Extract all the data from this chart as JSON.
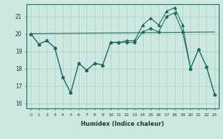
{
  "xlabel": "Humidex (Indice chaleur)",
  "bg_color": "#cce8e0",
  "grid_color": "#aaccC4",
  "line_color": "#1a6b5a",
  "xlim": [
    -0.5,
    23.5
  ],
  "ylim": [
    15.7,
    21.7
  ],
  "yticks": [
    16,
    17,
    18,
    19,
    20,
    21
  ],
  "xticks": [
    0,
    1,
    2,
    3,
    4,
    5,
    6,
    7,
    8,
    9,
    10,
    11,
    12,
    13,
    14,
    15,
    16,
    17,
    18,
    19,
    20,
    21,
    22,
    23
  ],
  "series1_x": [
    0,
    1,
    2,
    3,
    4,
    5,
    6,
    7,
    8,
    9,
    10,
    11,
    12,
    13,
    14,
    15,
    16,
    17,
    18,
    19,
    20,
    21,
    22,
    23
  ],
  "series1_y": [
    20.0,
    19.4,
    19.6,
    19.2,
    17.5,
    16.6,
    18.3,
    17.9,
    18.3,
    18.2,
    19.5,
    19.5,
    19.5,
    19.5,
    20.1,
    20.3,
    20.1,
    21.0,
    21.2,
    20.1,
    18.0,
    19.1,
    18.1,
    16.5
  ],
  "series2_x": [
    0,
    1,
    2,
    3,
    4,
    5,
    6,
    7,
    8,
    9,
    10,
    11,
    12,
    13,
    14,
    15,
    16,
    17,
    18,
    19,
    20,
    21,
    22,
    23
  ],
  "series2_y": [
    20.0,
    19.4,
    19.6,
    19.2,
    17.5,
    16.6,
    18.3,
    17.9,
    18.3,
    18.2,
    19.5,
    19.5,
    19.6,
    19.6,
    20.5,
    20.9,
    20.5,
    21.3,
    21.5,
    20.5,
    18.0,
    19.1,
    18.1,
    16.5
  ],
  "series3_x": [
    0,
    23
  ],
  "series3_y": [
    20.0,
    20.1
  ]
}
